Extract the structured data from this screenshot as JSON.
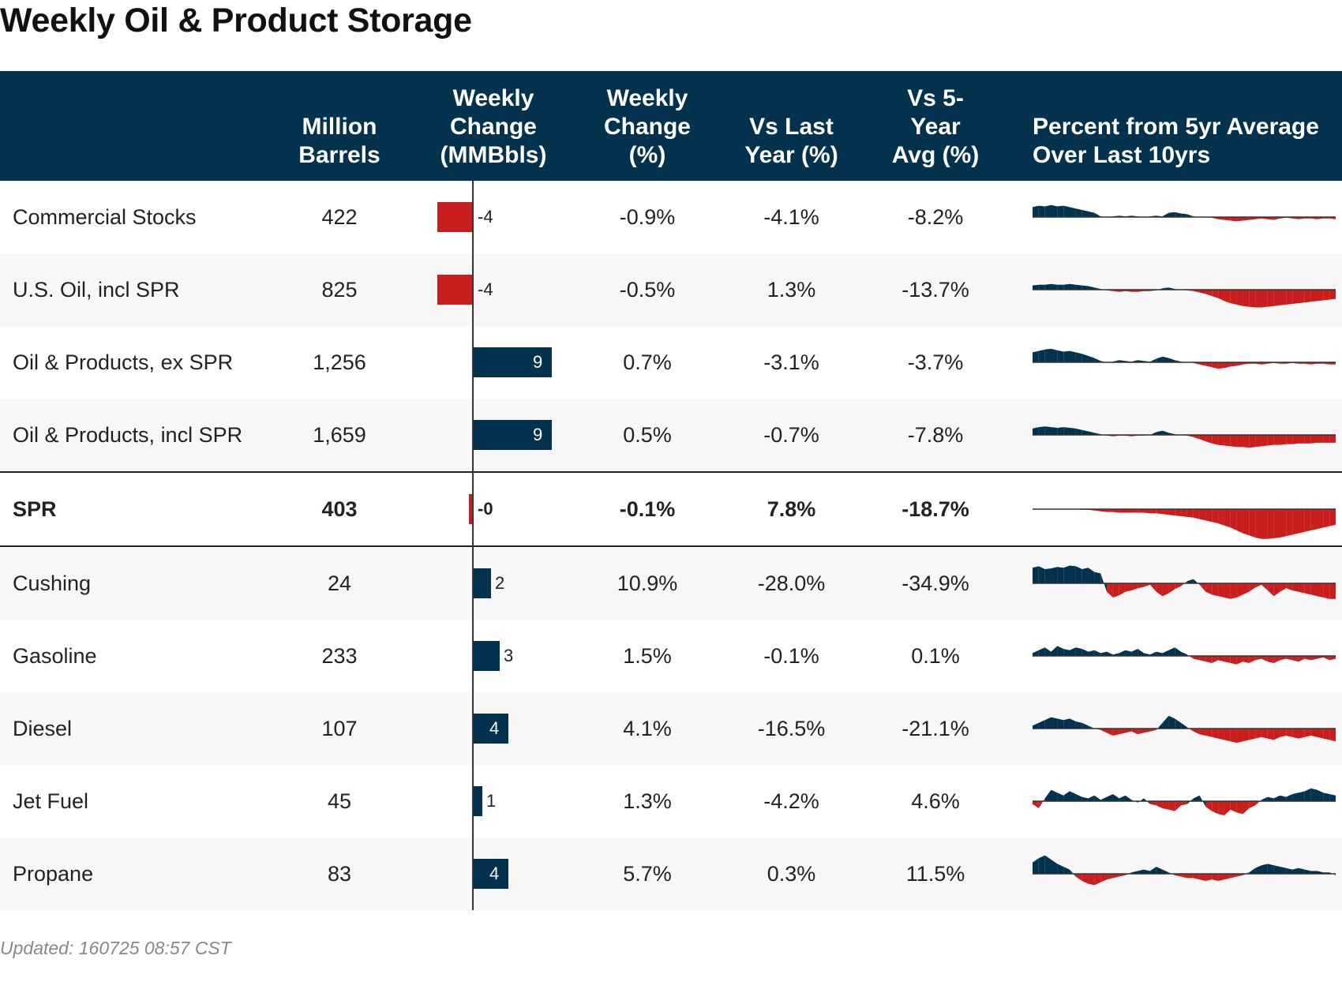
{
  "title": "Weekly Oil & Product Storage",
  "footer": "Updated: 160725 08:57 CST",
  "colors": {
    "header_bg": "#02324d",
    "positive": "#02324d",
    "negative": "#c81e1e"
  },
  "columns": [
    {
      "key": "name",
      "label": ""
    },
    {
      "key": "barrels",
      "label": "Million\nBarrels"
    },
    {
      "key": "change_mmbbls",
      "label": "Weekly\nChange\n(MMBbls)"
    },
    {
      "key": "change_pct",
      "label": "Weekly\nChange\n(%)"
    },
    {
      "key": "vs_last_year",
      "label": "Vs Last\nYear (%)"
    },
    {
      "key": "vs_5yr",
      "label": "Vs 5-\nYear\nAvg (%)"
    },
    {
      "key": "sparkline",
      "label": "Percent from 5yr Average\nOver Last 10yrs"
    }
  ],
  "chart_data": {
    "type": "table",
    "bar_column": "change_mmbbls",
    "bar_range": [
      -4.5,
      10
    ],
    "rows": [
      {
        "name": "Commercial Stocks",
        "barrels": "422",
        "change_value": -4,
        "change_label": "-4",
        "change_pct": "-0.9%",
        "vs_last_year": "-4.1%",
        "vs_5yr": "-8.2%",
        "bold": false,
        "sparkline": [
          14,
          16,
          15,
          17,
          15,
          16,
          14,
          12,
          10,
          8,
          6,
          1,
          0,
          1,
          2,
          1,
          2,
          1,
          0,
          1,
          2,
          1,
          6,
          7,
          5,
          4,
          1,
          0,
          0,
          -1,
          -3,
          -4,
          -5,
          -6,
          -5,
          -4,
          -3,
          -2,
          -3,
          -4,
          -2,
          -1,
          -2,
          -3,
          -2,
          -2,
          -3,
          -2,
          -2,
          -3
        ]
      },
      {
        "name": "U.S. Oil, incl SPR",
        "barrels": "825",
        "change_value": -4,
        "change_label": "-4",
        "change_pct": "-0.5%",
        "vs_last_year": "1.3%",
        "vs_5yr": "-13.7%",
        "bold": false,
        "sparkline": [
          6,
          7,
          7,
          8,
          7,
          7,
          8,
          7,
          6,
          5,
          3,
          1,
          -1,
          -2,
          -3,
          -2,
          -3,
          -3,
          -2,
          -2,
          -1,
          2,
          3,
          1,
          0,
          -1,
          -2,
          -4,
          -6,
          -9,
          -12,
          -16,
          -19,
          -21,
          -23,
          -24,
          -25,
          -25,
          -24,
          -23,
          -22,
          -21,
          -20,
          -19,
          -18,
          -17,
          -16,
          -15,
          -14,
          -13
        ]
      },
      {
        "name": "Oil & Products, ex SPR",
        "barrels": "1,256",
        "change_value": 9,
        "change_label": "9",
        "change_pct": "0.7%",
        "vs_last_year": "-3.1%",
        "vs_5yr": "-3.7%",
        "bold": false,
        "sparkline": [
          14,
          16,
          18,
          19,
          17,
          15,
          16,
          14,
          12,
          9,
          6,
          2,
          0,
          1,
          3,
          2,
          1,
          3,
          2,
          1,
          5,
          8,
          6,
          3,
          1,
          0,
          -1,
          -3,
          -5,
          -7,
          -9,
          -8,
          -6,
          -5,
          -3,
          -2,
          -2,
          -3,
          -2,
          -1,
          -2,
          -2,
          -1,
          -2,
          -2,
          -3,
          -2,
          -2,
          -3,
          -3
        ]
      },
      {
        "name": "Oil & Products, incl SPR",
        "barrels": "1,659",
        "change_value": 9,
        "change_label": "9",
        "change_pct": "0.5%",
        "vs_last_year": "-0.7%",
        "vs_5yr": "-7.8%",
        "bold": false,
        "sparkline": [
          9,
          11,
          12,
          11,
          10,
          11,
          10,
          9,
          7,
          5,
          3,
          1,
          -1,
          -2,
          -1,
          -1,
          -2,
          -1,
          -1,
          0,
          4,
          6,
          3,
          1,
          0,
          -1,
          -3,
          -6,
          -9,
          -12,
          -14,
          -15,
          -16,
          -17,
          -17,
          -18,
          -17,
          -16,
          -15,
          -14,
          -14,
          -13,
          -13,
          -12,
          -12,
          -12,
          -11,
          -11,
          -11,
          -11
        ]
      },
      {
        "name": "SPR",
        "barrels": "403",
        "change_value": -0.3,
        "change_label": "-0",
        "change_pct": "-0.1%",
        "vs_last_year": "7.8%",
        "vs_5yr": "-18.7%",
        "bold": true,
        "sparkline": [
          0,
          0,
          0,
          0,
          0,
          0,
          0,
          0,
          -1,
          -1,
          -2,
          -3,
          -4,
          -4,
          -5,
          -5,
          -5,
          -5,
          -5,
          -6,
          -6,
          -7,
          -8,
          -9,
          -10,
          -11,
          -12,
          -14,
          -16,
          -18,
          -20,
          -23,
          -26,
          -30,
          -34,
          -37,
          -40,
          -42,
          -42,
          -41,
          -40,
          -38,
          -36,
          -34,
          -32,
          -30,
          -28,
          -26,
          -24,
          -22
        ]
      },
      {
        "name": "Cushing",
        "barrels": "24",
        "change_value": 2,
        "change_label": "2",
        "change_pct": "10.9%",
        "vs_last_year": "-28.0%",
        "vs_5yr": "-34.9%",
        "bold": false,
        "sparkline": [
          22,
          24,
          20,
          21,
          23,
          22,
          25,
          24,
          20,
          22,
          16,
          14,
          -12,
          -20,
          -17,
          -12,
          -10,
          -7,
          -5,
          -2,
          -12,
          -18,
          -14,
          -8,
          -4,
          3,
          6,
          -2,
          -12,
          -16,
          -18,
          -20,
          -22,
          -20,
          -16,
          -12,
          -6,
          -2,
          -10,
          -18,
          -12,
          -7,
          -10,
          -12,
          -14,
          -16,
          -18,
          -20,
          -22,
          -22
        ]
      },
      {
        "name": "Gasoline",
        "barrels": "233",
        "change_value": 3,
        "change_label": "3",
        "change_pct": "1.5%",
        "vs_last_year": "-0.1%",
        "vs_5yr": "0.1%",
        "bold": false,
        "sparkline": [
          4,
          8,
          12,
          6,
          14,
          10,
          8,
          12,
          10,
          6,
          8,
          4,
          6,
          2,
          4,
          8,
          6,
          10,
          4,
          2,
          6,
          4,
          8,
          12,
          6,
          2,
          -4,
          -6,
          -8,
          -10,
          -6,
          -8,
          -10,
          -12,
          -8,
          -10,
          -6,
          -4,
          -8,
          -10,
          -6,
          -4,
          -6,
          -8,
          -4,
          -6,
          -4,
          -2,
          -6,
          -4
        ]
      },
      {
        "name": "Diesel",
        "barrels": "107",
        "change_value": 4,
        "change_label": "4",
        "change_pct": "4.1%",
        "vs_last_year": "-16.5%",
        "vs_5yr": "-21.1%",
        "bold": false,
        "sparkline": [
          4,
          8,
          12,
          16,
          14,
          12,
          14,
          10,
          8,
          4,
          0,
          -2,
          -6,
          -10,
          -8,
          -6,
          -4,
          -8,
          -6,
          -4,
          -2,
          8,
          18,
          14,
          8,
          2,
          -4,
          -8,
          -10,
          -12,
          -14,
          -16,
          -18,
          -20,
          -18,
          -16,
          -14,
          -12,
          -14,
          -16,
          -12,
          -10,
          -12,
          -14,
          -12,
          -10,
          -12,
          -14,
          -16,
          -18
        ]
      },
      {
        "name": "Jet Fuel",
        "barrels": "45",
        "change_value": 1,
        "change_label": "1",
        "change_pct": "1.3%",
        "vs_last_year": "-4.2%",
        "vs_5yr": "4.6%",
        "bold": false,
        "sparkline": [
          -4,
          -10,
          4,
          16,
          12,
          8,
          14,
          10,
          6,
          4,
          8,
          2,
          6,
          10,
          4,
          8,
          2,
          -2,
          4,
          -4,
          -6,
          -10,
          -12,
          -14,
          -6,
          -4,
          4,
          8,
          -8,
          -14,
          -18,
          -20,
          -12,
          -16,
          -18,
          -10,
          -6,
          2,
          6,
          4,
          8,
          6,
          10,
          12,
          14,
          18,
          16,
          12,
          10,
          8
        ]
      },
      {
        "name": "Propane",
        "barrels": "83",
        "change_value": 4,
        "change_label": "4",
        "change_pct": "5.7%",
        "vs_last_year": "0.3%",
        "vs_5yr": "11.5%",
        "bold": false,
        "sparkline": [
          16,
          22,
          26,
          20,
          14,
          10,
          6,
          -4,
          -10,
          -14,
          -16,
          -12,
          -8,
          -6,
          -4,
          -2,
          2,
          4,
          6,
          4,
          10,
          6,
          2,
          -2,
          -4,
          -6,
          -6,
          -8,
          -10,
          -8,
          -10,
          -8,
          -6,
          -4,
          -2,
          2,
          8,
          12,
          14,
          12,
          10,
          8,
          6,
          8,
          6,
          4,
          4,
          2,
          2,
          -2
        ]
      }
    ]
  }
}
